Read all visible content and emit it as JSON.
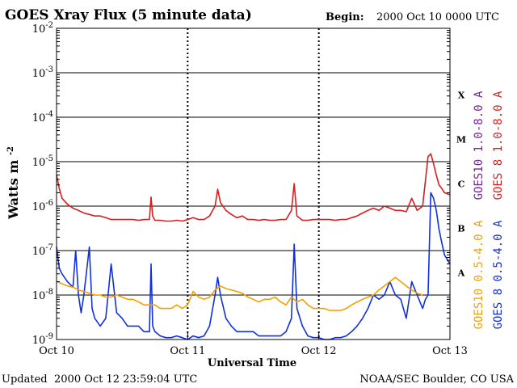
{
  "chart_data": {
    "type": "line",
    "title": "GOES Xray Flux (5 minute data)",
    "begin_label": "Begin:",
    "begin_value": "2000 Oct 10 0000 UTC",
    "xlabel": "Universal Time",
    "ylabel": "Watts m",
    "ylabel_sup": "-2",
    "x_ticks": [
      "Oct 10",
      "Oct 11",
      "Oct 12",
      "Oct 13"
    ],
    "xlim": [
      0,
      72
    ],
    "x_unit": "hours since Oct 10 0000 UTC",
    "yscale": "log",
    "ylim": [
      1e-09,
      0.01
    ],
    "y_ticks": [
      {
        "base": "10",
        "exp": "-9"
      },
      {
        "base": "10",
        "exp": "-8"
      },
      {
        "base": "10",
        "exp": "-7"
      },
      {
        "base": "10",
        "exp": "-6"
      },
      {
        "base": "10",
        "exp": "-5"
      },
      {
        "base": "10",
        "exp": "-4"
      },
      {
        "base": "10",
        "exp": "-3"
      },
      {
        "base": "10",
        "exp": "-2"
      }
    ],
    "flare_classes": [
      "A",
      "B",
      "C",
      "M",
      "X"
    ],
    "grid": "horizontal at each decade, dashed vertical at day boundaries",
    "legend": [
      {
        "label": "GOES10 1.0-8.0 A",
        "color": "#7a1fa2"
      },
      {
        "label": "GOES 8 1.0-8.0 A",
        "color": "#d81e1e"
      },
      {
        "label": "GOES10 0.5-4.0 A",
        "color": "#f5a000"
      },
      {
        "label": "GOES 8 0.5-4.0 A",
        "color": "#1030e0"
      }
    ],
    "series": [
      {
        "name": "GOES 8 1.0-8.0 A",
        "color": "#d81e1e",
        "x": [
          0,
          0.5,
          1,
          2,
          3,
          4,
          5,
          6,
          7,
          8,
          9,
          10,
          11,
          12,
          13,
          14,
          15,
          16,
          17,
          17.3,
          17.6,
          18,
          19,
          20,
          21,
          22,
          23,
          24,
          25,
          26,
          27,
          28,
          29,
          29.5,
          30,
          31,
          32,
          33,
          34,
          35,
          36,
          37,
          38,
          39,
          40,
          41,
          42,
          43,
          43.5,
          44,
          45,
          46,
          47,
          48,
          49,
          50,
          51,
          52,
          53,
          54,
          55,
          56,
          57,
          58,
          59,
          60,
          61,
          62,
          63,
          64,
          65,
          66,
          67,
          68,
          68.5,
          69,
          69.5,
          70,
          70.5,
          71,
          72
        ],
        "y": [
          5e-06,
          2.5e-06,
          1.5e-06,
          1.1e-06,
          9e-07,
          8e-07,
          7e-07,
          6.5e-07,
          6e-07,
          6e-07,
          5.5e-07,
          5e-07,
          5e-07,
          5e-07,
          5e-07,
          5e-07,
          4.8e-07,
          5e-07,
          5e-07,
          1.6e-06,
          6e-07,
          4.8e-07,
          4.8e-07,
          4.6e-07,
          4.6e-07,
          4.8e-07,
          4.6e-07,
          5e-07,
          5.5e-07,
          5e-07,
          5e-07,
          6e-07,
          1e-06,
          2.4e-06,
          1.2e-06,
          8e-07,
          6.5e-07,
          5.5e-07,
          6e-07,
          5e-07,
          5e-07,
          4.8e-07,
          5e-07,
          4.8e-07,
          4.8e-07,
          5e-07,
          5e-07,
          8e-07,
          3.2e-06,
          6e-07,
          4.8e-07,
          4.8e-07,
          5e-07,
          5e-07,
          5e-07,
          5e-07,
          4.8e-07,
          5e-07,
          5e-07,
          5.5e-07,
          6e-07,
          7e-07,
          8e-07,
          9e-07,
          8e-07,
          1e-06,
          9e-07,
          8e-07,
          8e-07,
          7.5e-07,
          1.5e-06,
          8e-07,
          1e-06,
          1.3e-05,
          1.5e-05,
          9e-06,
          5e-06,
          3e-06,
          2.5e-06,
          2e-06,
          1.8e-06
        ]
      },
      {
        "name": "GOES 8 0.5-4.0 A",
        "color": "#1030e0",
        "x": [
          0,
          0.5,
          1,
          2,
          3,
          3.5,
          4,
          4.5,
          5,
          6,
          6.5,
          7,
          8,
          9,
          10,
          11,
          12,
          13,
          14,
          15,
          16,
          17,
          17.3,
          17.6,
          18,
          19,
          20,
          21,
          22,
          23,
          24,
          25,
          26,
          27,
          28,
          29,
          29.5,
          30,
          31,
          32,
          33,
          34,
          35,
          36,
          37,
          38,
          39,
          40,
          41,
          42,
          43,
          43.5,
          44,
          45,
          46,
          47,
          48,
          49,
          50,
          51,
          52,
          53,
          54,
          55,
          56,
          57,
          58,
          59,
          60,
          61,
          62,
          63,
          64,
          65,
          66,
          67,
          67.5,
          68,
          68.5,
          69,
          69.5,
          70,
          70.5,
          71,
          72
        ],
        "y": [
          1.2e-07,
          4e-08,
          3e-08,
          2e-08,
          1.5e-08,
          1e-07,
          1e-08,
          4e-09,
          1e-08,
          1.2e-07,
          5e-09,
          3e-09,
          2e-09,
          3e-09,
          5e-08,
          4e-09,
          3e-09,
          2e-09,
          2e-09,
          2e-09,
          1.5e-09,
          1.5e-09,
          5e-08,
          2e-09,
          1.5e-09,
          1.2e-09,
          1.1e-09,
          1.1e-09,
          1.2e-09,
          1.1e-09,
          1e-09,
          1.2e-09,
          1.1e-09,
          1.2e-09,
          2e-09,
          1e-08,
          2.5e-08,
          1e-08,
          3e-09,
          2e-09,
          1.5e-09,
          1.5e-09,
          1.5e-09,
          1.5e-09,
          1.2e-09,
          1.2e-09,
          1.2e-09,
          1.2e-09,
          1.2e-09,
          1.5e-09,
          3e-09,
          1.4e-07,
          5e-09,
          2e-09,
          1.2e-09,
          1.1e-09,
          1.1e-09,
          1e-09,
          1e-09,
          1.1e-09,
          1.1e-09,
          1.2e-09,
          1.5e-09,
          2e-09,
          3e-09,
          5e-09,
          1e-08,
          8e-09,
          1e-08,
          2e-08,
          1e-08,
          8e-09,
          3e-09,
          2e-08,
          1e-08,
          5e-09,
          8e-09,
          1e-08,
          2e-06,
          1.5e-06,
          8e-07,
          3e-07,
          1.5e-07,
          8e-08,
          5e-08
        ]
      },
      {
        "name": "GOES10 0.5-4.0 A",
        "color": "#f5a000",
        "x": [
          0,
          1,
          2,
          3,
          4,
          5,
          6,
          7,
          8,
          9,
          10,
          11,
          12,
          13,
          14,
          15,
          16,
          17,
          18,
          19,
          20,
          21,
          22,
          23,
          24,
          25,
          26,
          27,
          28,
          29,
          30,
          31,
          32,
          33,
          34,
          35,
          36,
          37,
          38,
          39,
          40,
          41,
          42,
          43,
          44,
          45,
          46,
          47,
          48,
          49,
          50,
          51,
          52,
          53,
          54,
          55,
          56,
          57,
          58,
          59,
          60,
          61,
          62,
          63,
          64,
          65,
          66,
          67
        ],
        "y": [
          2e-08,
          1.8e-08,
          1.6e-08,
          1.5e-08,
          1.3e-08,
          1.2e-08,
          1.1e-08,
          1e-08,
          1e-08,
          9e-09,
          9e-09,
          1e-08,
          9e-09,
          8e-09,
          8e-09,
          7e-09,
          6e-09,
          6e-09,
          6e-09,
          5e-09,
          5e-09,
          5e-09,
          6e-09,
          5e-09,
          6e-09,
          1.2e-08,
          9e-09,
          8e-09,
          9e-09,
          1.3e-08,
          1.6e-08,
          1.4e-08,
          1.3e-08,
          1.2e-08,
          1.1e-08,
          9e-09,
          8e-09,
          7e-09,
          8e-09,
          8e-09,
          9e-09,
          7e-09,
          6e-09,
          9e-09,
          7e-09,
          8e-09,
          6e-09,
          5e-09,
          5e-09,
          5e-09,
          4.5e-09,
          4.5e-09,
          4.5e-09,
          5e-09,
          6e-09,
          7e-09,
          8e-09,
          9e-09,
          1e-08,
          1.3e-08,
          1.6e-08,
          2e-08,
          2.5e-08,
          2e-08,
          1.6e-08,
          1.3e-08,
          1.1e-08,
          1e-08
        ]
      },
      {
        "name": "GOES10 1.0-8.0 A",
        "color": "#7a1fa2",
        "x": [],
        "y": []
      }
    ]
  },
  "footer": {
    "updated_label": "Updated",
    "updated_value": "2000 Oct 12 23:59:04 UTC",
    "source": "NOAA/SEC Boulder, CO USA"
  }
}
